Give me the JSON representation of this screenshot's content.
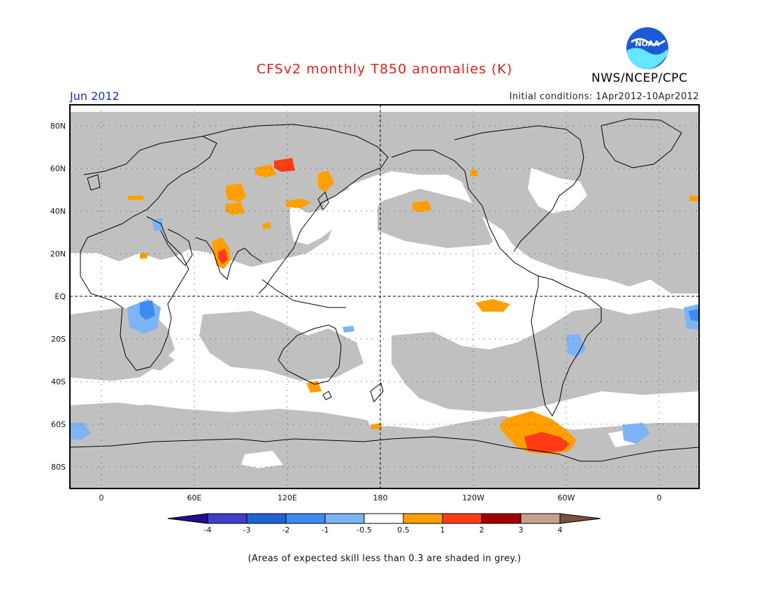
{
  "header": {
    "title": "CFSv2 monthly T850 anomalies (K)",
    "month": "Jun 2012",
    "initial_conditions": "Initial conditions: 1Apr2012-10Apr2012",
    "agency": "NWS/NCEP/CPC",
    "logo_text": "NOAA"
  },
  "map": {
    "lat_labels": [
      "80N",
      "60N",
      "40N",
      "20N",
      "EQ",
      "20S",
      "40S",
      "60S",
      "80S"
    ],
    "lon_labels": [
      "0",
      "60E",
      "120E",
      "180",
      "120W",
      "60W",
      "0"
    ]
  },
  "legend": {
    "labels": [
      "-4",
      "-3",
      "-2",
      "-1",
      "-0.5",
      "0.5",
      "1",
      "2",
      "3",
      "4"
    ],
    "colors": [
      "#1f0f8c",
      "#3f3fc8",
      "#1f64d2",
      "#3c8cf0",
      "#7cb4f5",
      "#ffffff",
      "#ffa000",
      "#ff3c14",
      "#a00000",
      "#c8a08c",
      "#7a5040"
    ]
  },
  "footer": {
    "skill_note": "(Areas of expected skill less than 0.3 are shaded in grey.)"
  },
  "colors": {
    "grey_mask": "#c0c0c0",
    "title": "#e0201b",
    "month": "#1c2bd6"
  }
}
